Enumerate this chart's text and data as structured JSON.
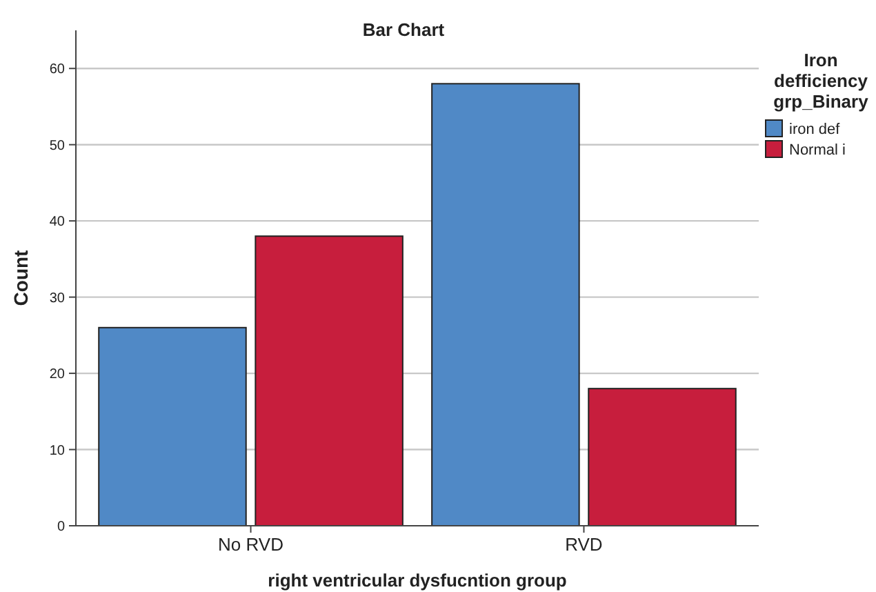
{
  "chart_data": {
    "type": "bar",
    "title": "Bar Chart",
    "xlabel": "right ventricular dysfucntion group",
    "ylabel": "Count",
    "legend_title": "Iron defficiency grp_Binary",
    "categories": [
      "No RVD",
      "RVD"
    ],
    "series": [
      {
        "name": "iron def",
        "color": "#5089c6",
        "values": [
          26,
          58
        ]
      },
      {
        "name": "Normal i",
        "color": "#c71e3d",
        "values": [
          38,
          18
        ]
      }
    ],
    "ylim": [
      0,
      65
    ],
    "yticks": [
      0,
      10,
      20,
      30,
      40,
      50,
      60
    ],
    "grid": "y",
    "legend": "top right"
  }
}
